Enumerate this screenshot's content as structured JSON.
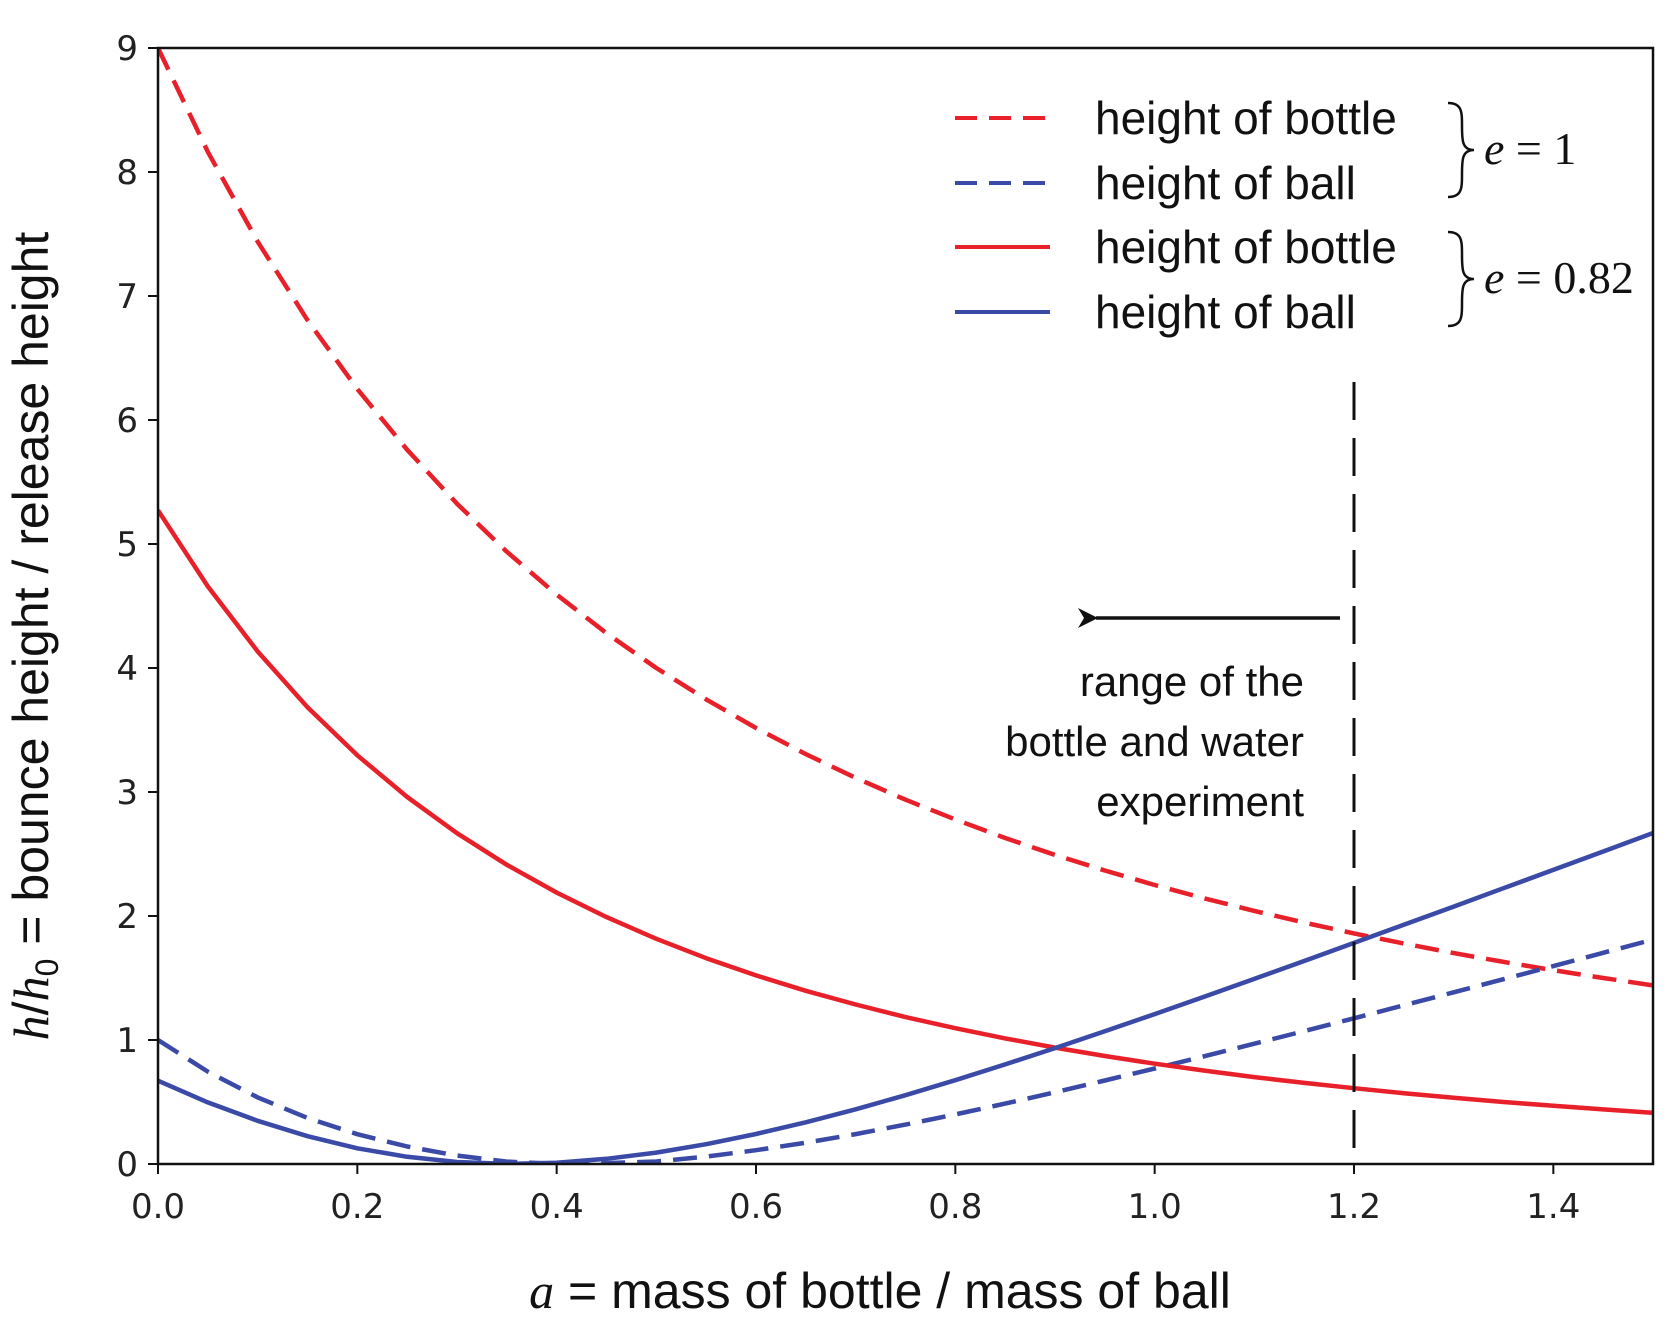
{
  "chart_data": {
    "type": "line",
    "xlabel": {
      "var": "a",
      "rest": " = mass of bottle / mass of ball"
    },
    "ylabel": {
      "var": "h",
      "slash": "/",
      "var2": "h",
      "sub": "0",
      "rest": " = bounce height / release height"
    },
    "xlim": [
      0,
      1.5
    ],
    "ylim": [
      0,
      9
    ],
    "x_ticks": [
      "0.0",
      "0.2",
      "0.4",
      "0.6",
      "0.8",
      "1.0",
      "1.2",
      "1.4"
    ],
    "y_ticks": [
      "0",
      "1",
      "2",
      "3",
      "4",
      "5",
      "6",
      "7",
      "8",
      "9"
    ],
    "grid": false,
    "legend_position": "top-right",
    "x_sample": [
      0.0,
      0.05,
      0.1,
      0.15,
      0.2,
      0.25,
      0.3,
      0.35,
      0.4,
      0.45,
      0.5,
      0.55,
      0.6,
      0.65,
      0.7,
      0.75,
      0.8,
      0.85,
      0.9,
      0.95,
      1.0,
      1.05,
      1.1,
      1.15,
      1.2,
      1.25,
      1.3,
      1.35,
      1.4,
      1.45,
      1.5
    ],
    "series": [
      {
        "name": "height of bottle",
        "group": "e = 1",
        "color": "#e8202a",
        "dash": true,
        "values": [
          9.0,
          8.163,
          7.438,
          6.805,
          6.25,
          5.76,
          5.325,
          4.938,
          4.592,
          4.281,
          4.0,
          3.747,
          3.516,
          3.306,
          3.114,
          2.938,
          2.778,
          2.629,
          2.493,
          2.367,
          2.25,
          2.142,
          2.041,
          1.947,
          1.86,
          1.778,
          1.701,
          1.63,
          1.563,
          1.5,
          1.44
        ]
      },
      {
        "name": "height of ball",
        "group": "e = 1",
        "color": "#3a4aa6",
        "dash": true,
        "values": [
          1.0,
          0.745,
          0.537,
          0.371,
          0.24,
          0.141,
          0.068,
          0.019,
          0.001,
          0.007,
          0.02,
          0.06,
          0.111,
          0.172,
          0.241,
          0.318,
          0.4,
          0.487,
          0.578,
          0.673,
          0.77,
          0.869,
          0.97,
          1.072,
          1.175,
          1.28,
          1.385,
          1.49,
          1.596,
          1.703,
          1.81
        ]
      },
      {
        "name": "height of bottle",
        "group": "e = 0.82",
        "color": "#e8202a",
        "dash": false,
        "values": [
          5.272,
          4.658,
          4.133,
          3.683,
          3.296,
          2.96,
          2.668,
          2.413,
          2.189,
          1.991,
          1.816,
          1.66,
          1.521,
          1.397,
          1.286,
          1.185,
          1.095,
          1.013,
          0.939,
          0.871,
          0.809,
          0.753,
          0.701,
          0.654,
          0.611,
          0.571,
          0.534,
          0.5,
          0.469,
          0.44,
          0.413
        ]
      },
      {
        "name": "height of ball",
        "group": "e = 0.82",
        "color": "#3a4aa6",
        "dash": false,
        "values": [
          0.672,
          0.497,
          0.348,
          0.224,
          0.127,
          0.058,
          0.016,
          0.001,
          0.01,
          0.042,
          0.092,
          0.16,
          0.242,
          0.336,
          0.441,
          0.555,
          0.676,
          0.803,
          0.935,
          1.07,
          1.209,
          1.35,
          1.493,
          1.637,
          1.783,
          1.929,
          2.076,
          2.224,
          2.372,
          2.52,
          2.669
        ]
      }
    ],
    "legend_groups": [
      {
        "label": "e = 1",
        "var": "e",
        "rest": " = 1"
      },
      {
        "label": "e = 0.82",
        "var": "e",
        "rest": " = 0.82"
      }
    ],
    "vline": {
      "x": 1.2,
      "color": "#111111"
    },
    "annotation": {
      "lines": [
        "range of the",
        "bottle and water",
        "experiment"
      ],
      "arrow_direction": "left"
    }
  }
}
